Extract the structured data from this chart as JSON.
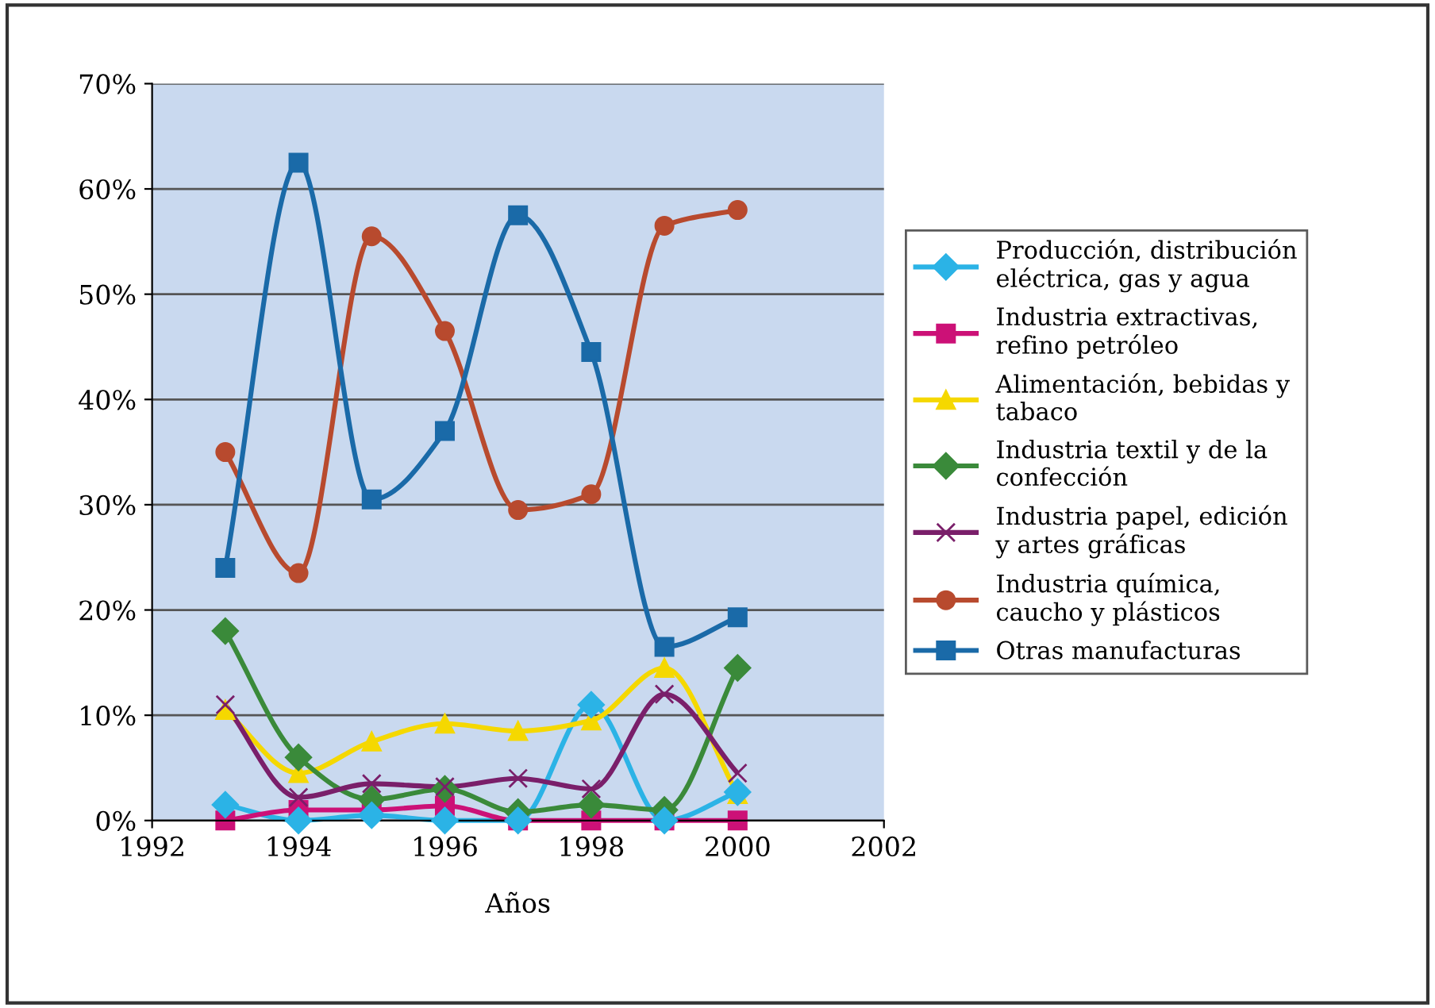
{
  "chart_data": {
    "type": "line",
    "xlabel": "Años",
    "x": [
      1993,
      1994,
      1995,
      1996,
      1997,
      1998,
      1999,
      2000
    ],
    "xlim": [
      1992,
      2002
    ],
    "xticks": [
      1992,
      1994,
      1996,
      1998,
      2000,
      2002
    ],
    "ylim": [
      0,
      0.7
    ],
    "yticks": [
      {
        "value": 0,
        "label": "0%"
      },
      {
        "value": 0.1,
        "label": "10%"
      },
      {
        "value": 0.2,
        "label": "20%"
      },
      {
        "value": 0.3,
        "label": "30%"
      },
      {
        "value": 0.4,
        "label": "40%"
      },
      {
        "value": 0.5,
        "label": "50%"
      },
      {
        "value": 0.6,
        "label": "60%"
      },
      {
        "value": 0.7,
        "label": "70%"
      }
    ],
    "grid": "y",
    "legend": "right",
    "series": [
      {
        "name": "Producción, distribución\neléctrica, gas y agua",
        "color": "#2bb3e6",
        "marker": "diamond",
        "values": [
          0.015,
          0,
          0.005,
          0,
          0,
          0.11,
          0,
          0.027
        ]
      },
      {
        "name": "Industria extractivas,\nrefino petróleo",
        "color": "#cc1177",
        "marker": "square",
        "values": [
          0,
          0.01,
          0.01,
          0.014,
          0,
          0,
          0,
          0
        ]
      },
      {
        "name": "Alimentación, bebidas y\ntabaco",
        "color": "#f5d800",
        "marker": "triangle",
        "values": [
          0.105,
          0.045,
          0.075,
          0.092,
          0.085,
          0.095,
          0.145,
          0.025
        ]
      },
      {
        "name": "Industria textil y de la\nconfección",
        "color": "#3a8a3a",
        "marker": "diamond",
        "values": [
          0.18,
          0.06,
          0.02,
          0.03,
          0.008,
          0.015,
          0.01,
          0.145
        ]
      },
      {
        "name": "Industria papel, edición\ny artes gráficas",
        "color": "#7a1f6a",
        "marker": "cross",
        "values": [
          0.11,
          0.022,
          0.035,
          0.032,
          0.04,
          0.03,
          0.12,
          0.045
        ]
      },
      {
        "name": "Industria química,\ncaucho y plásticos",
        "color": "#b84a2e",
        "marker": "circle",
        "values": [
          0.35,
          0.235,
          0.555,
          0.465,
          0.295,
          0.31,
          0.565,
          0.58
        ]
      },
      {
        "name": "Otras manufacturas",
        "color": "#1a6aa8",
        "marker": "square",
        "values": [
          0.24,
          0.625,
          0.305,
          0.37,
          0.575,
          0.445,
          0.165,
          0.193
        ]
      }
    ]
  }
}
